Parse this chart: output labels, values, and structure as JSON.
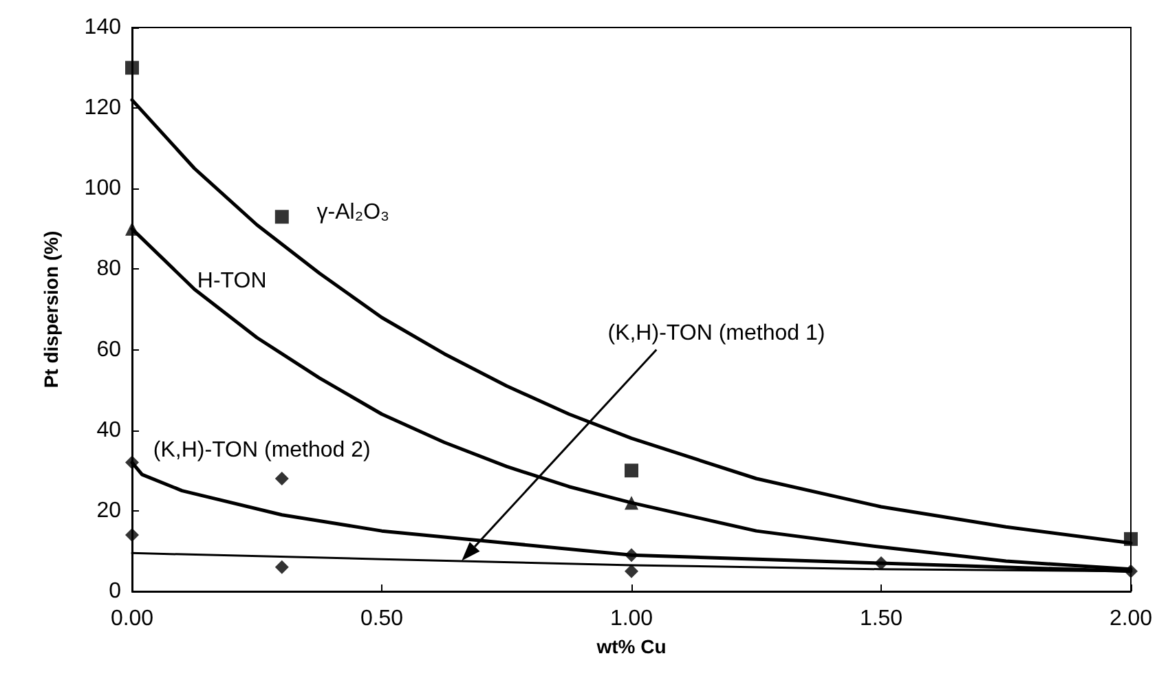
{
  "chart_data": {
    "type": "scatter",
    "xlabel": "wt% Cu",
    "ylabel": "Pt dispersion (%)",
    "xlim": [
      0,
      2
    ],
    "xticks": [
      {
        "value": 0,
        "label": "0.00"
      },
      {
        "value": 0.5,
        "label": "0.50"
      },
      {
        "value": 1,
        "label": "1.00"
      },
      {
        "value": 1.5,
        "label": "1.50"
      },
      {
        "value": 2,
        "label": "2.00"
      }
    ],
    "ylim": [
      0,
      140
    ],
    "yticks": [
      0,
      20,
      40,
      60,
      80,
      100,
      120,
      140
    ],
    "grid": false,
    "legend": false,
    "series": [
      {
        "color": "#000000",
        "marker": "square",
        "x": [
          0,
          0.3,
          1,
          2
        ],
        "values": [
          130,
          93,
          30,
          13
        ]
      },
      {
        "color": "#000000",
        "marker": "triangle",
        "x": [
          0,
          1
        ],
        "values": [
          90,
          22
        ]
      },
      {
        "color": "#000000",
        "marker": "diamond",
        "x": [
          0,
          0.3,
          1,
          1.5
        ],
        "values": [
          32,
          28,
          9,
          7
        ]
      },
      {
        "color": "#000000",
        "marker": "diamond",
        "x": [
          0,
          0.3,
          1,
          2
        ],
        "values": [
          14,
          6,
          5,
          5
        ]
      },
      {
        "name": "γ-Al₂O₃",
        "type": "line",
        "color": "#000000",
        "marker": "none",
        "x": [
          0,
          0.125,
          0.25,
          0.375,
          0.5,
          0.625,
          0.75,
          0.875,
          1,
          1.25,
          1.5,
          1.75,
          2
        ],
        "values": [
          122,
          105,
          91,
          79,
          68,
          59,
          51,
          44,
          38,
          28,
          21,
          16,
          12
        ]
      },
      {
        "name": "H-TON",
        "type": "line",
        "color": "#000000",
        "marker": "none",
        "x": [
          0,
          0.125,
          0.25,
          0.375,
          0.5,
          0.625,
          0.75,
          0.875,
          1,
          1.25,
          1.5,
          1.75,
          2
        ],
        "values": [
          90,
          75,
          63,
          53,
          44,
          37,
          31,
          26,
          22,
          15,
          11,
          7.5,
          5.5
        ]
      },
      {
        "name": "(K,H)-TON (method 2)",
        "type": "line",
        "color": "#000000",
        "marker": "none",
        "x": [
          0,
          0.02,
          0.1,
          0.3,
          0.5,
          0.75,
          1,
          1.5,
          2
        ],
        "values": [
          32,
          29,
          25,
          19,
          15,
          12,
          9,
          7,
          5
        ]
      },
      {
        "name": "(K,H)-TON (method 1)",
        "type": "line",
        "color": "#000000",
        "marker": "none",
        "x": [
          0,
          0.5,
          1,
          1.5,
          2
        ],
        "values": [
          9.5,
          8,
          6.5,
          5.5,
          5
        ]
      }
    ]
  }
}
